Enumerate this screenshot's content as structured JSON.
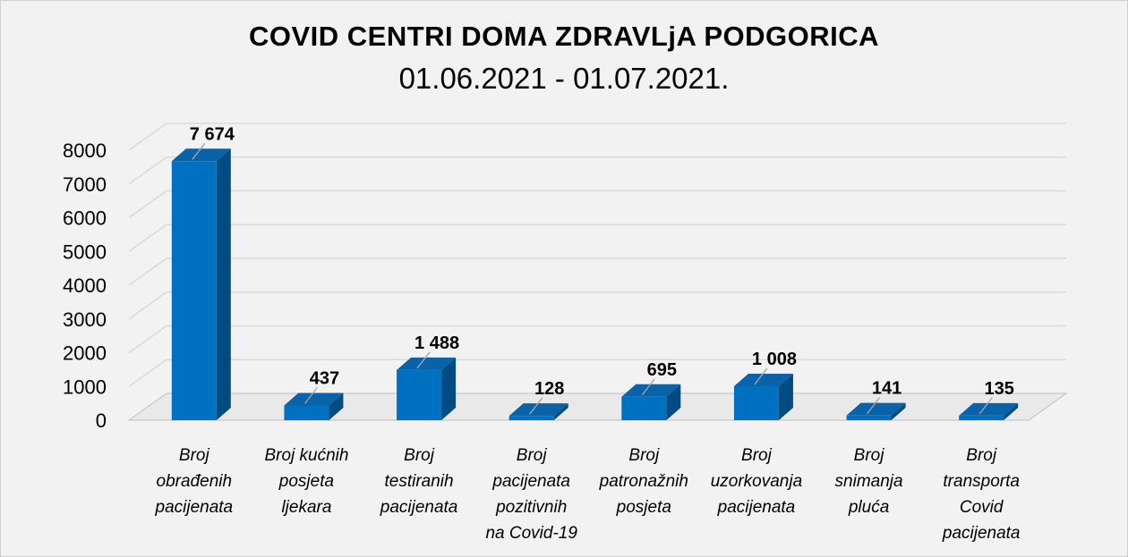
{
  "chart_data": {
    "type": "bar",
    "title": "COVID  CENTRI  DOMA ZDRAVLjA  PODGORICA",
    "subtitle": "01.06.2021 - 01.07.2021.",
    "categories": [
      [
        "Broj",
        "obrađenih",
        "pacijenata"
      ],
      [
        "Broj kućnih",
        "posjeta",
        "ljekara"
      ],
      [
        "Broj",
        "testiranih",
        "pacijenata"
      ],
      [
        "Broj",
        "pacijenata",
        "pozitivnih",
        "na Covid-19"
      ],
      [
        "Broj",
        "patronažnih",
        "posjeta"
      ],
      [
        "Broj",
        "uzorkovanja",
        "pacijenata"
      ],
      [
        "Broj",
        "snimanja",
        "pluća"
      ],
      [
        "Broj",
        "transporta",
        "Covid",
        "pacijenata"
      ]
    ],
    "values": [
      7674,
      437,
      1488,
      128,
      695,
      1008,
      141,
      135
    ],
    "data_labels": [
      "7 674",
      "437",
      "1 488",
      "128",
      "695",
      "1 008",
      "141",
      "135"
    ],
    "yticks": [
      "0",
      "1000",
      "2000",
      "3000",
      "4000",
      "5000",
      "6000",
      "7000",
      "8000"
    ],
    "ylim": [
      0,
      8000
    ],
    "grid": true,
    "legend": "none",
    "colors": {
      "bar_front": "#0070c0",
      "bar_side": "#004b82",
      "bar_top": "#0a63a8",
      "grid": "#d9d9d9",
      "axis": "#bfbfbf",
      "leader": "#a6a6a6"
    }
  }
}
